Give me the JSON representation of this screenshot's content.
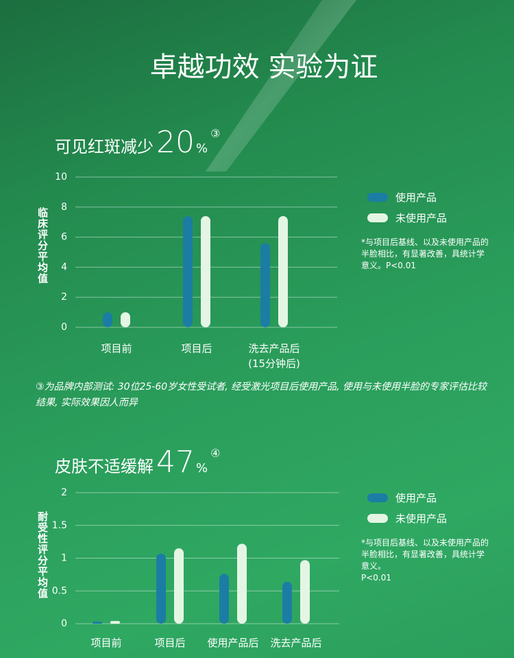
{
  "title": "卓越功效 实验为证",
  "chart_data": [
    {
      "type": "bar",
      "title": "可见红斑减少",
      "highlight": "20",
      "highlight_unit": "%",
      "note_mark": "③",
      "y_label": "临床评分平均值",
      "categories": [
        "项目前",
        "项目后",
        "洗去产品后\n(15分钟后)"
      ],
      "series": [
        {
          "name": "使用产品",
          "color": "#1b7da3",
          "values": [
            1.0,
            7.4,
            5.6
          ]
        },
        {
          "name": "未使用产品",
          "color": "#e4f6e3",
          "values": [
            1.0,
            7.4,
            7.4
          ]
        }
      ],
      "ylim": [
        0,
        10
      ],
      "yticks": [
        0,
        2,
        4,
        6,
        8,
        10
      ],
      "grid": true,
      "note": "*与项目后基线、以及未使用产品的半脸相比，有显著改善，具统计学意义。P<0.01",
      "footnote": "③为品牌内部测试: 30位25-60岁女性受试者, 经受激光项目后使用产品, 使用与未使用半脸的专家评估比较结果, 实际效果因人而异"
    },
    {
      "type": "bar",
      "title": "皮肤不适缓解",
      "highlight": "47",
      "highlight_unit": "%",
      "note_mark": "④",
      "y_label": "耐受性评分平均值",
      "categories": [
        "项目前",
        "项目后",
        "使用产品后",
        "洗去产品后"
      ],
      "series": [
        {
          "name": "使用产品",
          "color": "#1b7da3",
          "values": [
            0.03,
            1.07,
            0.76,
            0.64
          ]
        },
        {
          "name": "未使用产品",
          "color": "#e4f6e3",
          "values": [
            0.04,
            1.15,
            1.22,
            0.97
          ]
        }
      ],
      "ylim": [
        0,
        2
      ],
      "yticks": [
        0,
        0.5,
        1,
        1.5,
        2
      ],
      "grid": true,
      "note": "*与项目后基线、以及未使用产品的半脸相比，有显著改善，具统计学意义。\nP<0.01"
    }
  ]
}
